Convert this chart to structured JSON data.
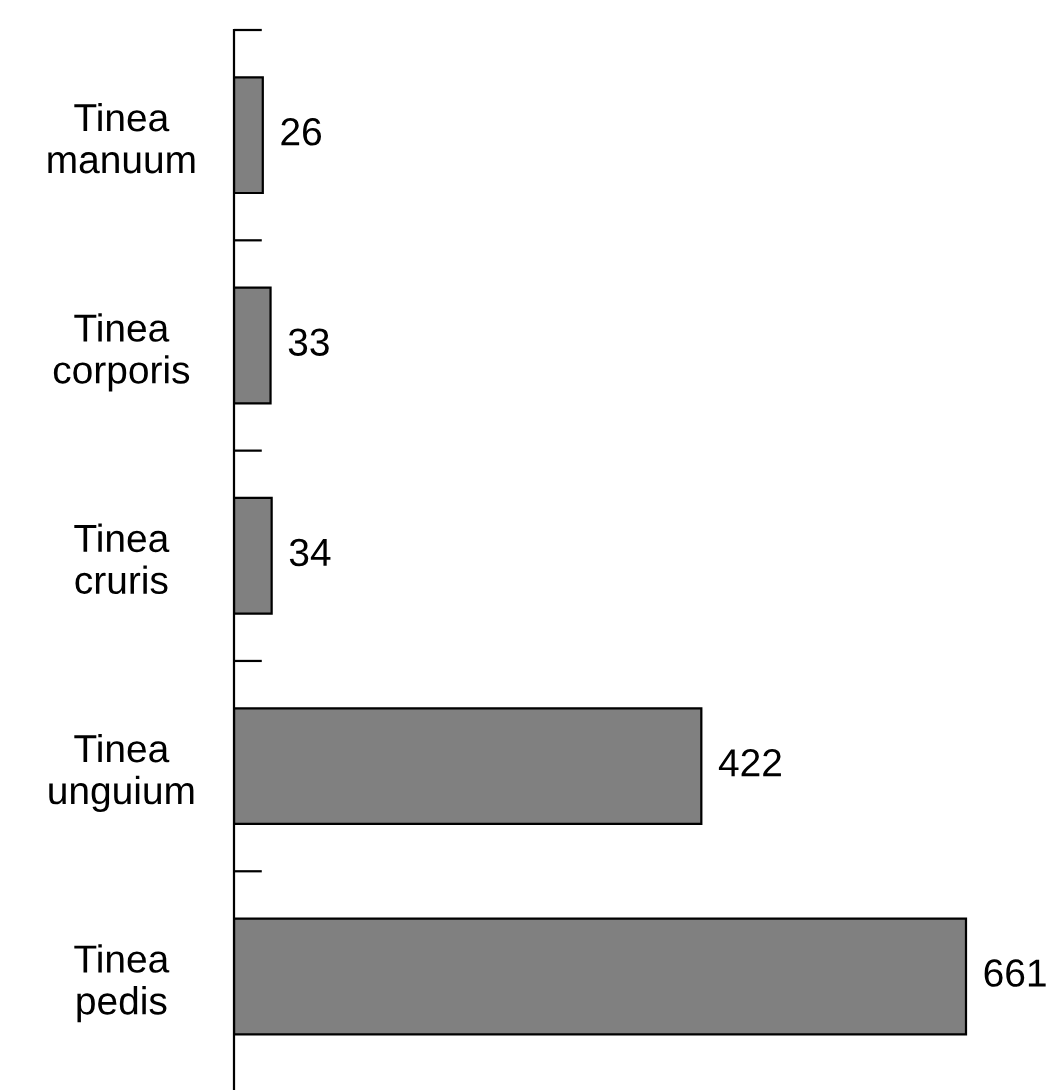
{
  "chart_data": {
    "type": "bar",
    "orientation": "horizontal",
    "categories": [
      "Tinea\nmanuum",
      "Tinea\ncorporis",
      "Tinea\ncruris",
      "Tinea\nunguium",
      "Tinea\npedis"
    ],
    "values": [
      26,
      33,
      34,
      422,
      661
    ],
    "color": "#808080",
    "data_labels": true,
    "grid": false,
    "legend": false
  }
}
